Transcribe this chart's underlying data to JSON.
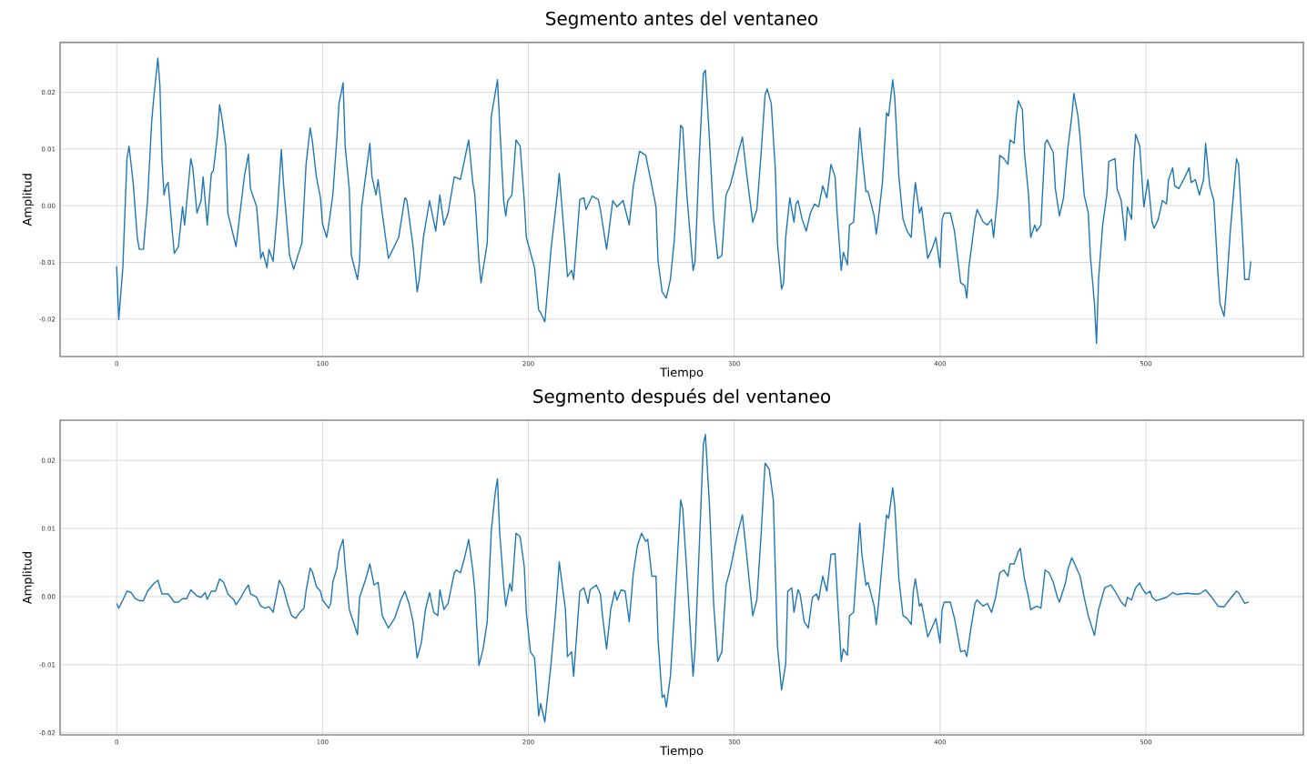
{
  "chart_data": [
    {
      "type": "line",
      "title": "Segmento antes del ventaneo",
      "xlabel": "Tiempo",
      "ylabel": "Amplitud",
      "color": "#1f77b4",
      "grid": true,
      "xlim": [
        -27.5,
        576.5
      ],
      "ylim": [
        -0.0266,
        0.0288
      ],
      "xticks": [
        0,
        100,
        200,
        300,
        400,
        500
      ],
      "yticks": [
        -0.02,
        -0.01,
        {
          "value": 0,
          "label": "0.00"
        },
        0.01,
        0.02
      ],
      "x": [
        0,
        1,
        3,
        5,
        6,
        8,
        10,
        11,
        13,
        15,
        17,
        18,
        20,
        21,
        22,
        23,
        24,
        25,
        27,
        28,
        30,
        32,
        33,
        36,
        37,
        39,
        41,
        42,
        44,
        46,
        47,
        49,
        50,
        51,
        53,
        54,
        58,
        62,
        64,
        65,
        68,
        70,
        71,
        73,
        74,
        76,
        78,
        80,
        81,
        84,
        86,
        89,
        90,
        92,
        94,
        95,
        97,
        99,
        100,
        102,
        103,
        105,
        107,
        108,
        110,
        111,
        113,
        114,
        117,
        118,
        119,
        123,
        124,
        126,
        127,
        129,
        132,
        137,
        140,
        141,
        144,
        146,
        147,
        149,
        152,
        155,
        157,
        159,
        161,
        164,
        167,
        171,
        173,
        174,
        176,
        177,
        180,
        182,
        185,
        186,
        188,
        189,
        190,
        192,
        194,
        196,
        198,
        199,
        203,
        205,
        206,
        208,
        211,
        214,
        215,
        218,
        219,
        221,
        222,
        225,
        227,
        228,
        231,
        234,
        235,
        238,
        241,
        243,
        246,
        249,
        251,
        254,
        257,
        260,
        262,
        263,
        265,
        267,
        269,
        271,
        274,
        275,
        277,
        280,
        281,
        283,
        285,
        286,
        288,
        290,
        292,
        294,
        296,
        298,
        301,
        302,
        304,
        306,
        309,
        311,
        313,
        315,
        316,
        318,
        320,
        321,
        323,
        324,
        325,
        327,
        329,
        330,
        331,
        333,
        335,
        337,
        339,
        341,
        343,
        345,
        347,
        349,
        350,
        352,
        353,
        355,
        356,
        358,
        361,
        362,
        364,
        365,
        368,
        369,
        370,
        372,
        374,
        375,
        377,
        378,
        380,
        382,
        384,
        386,
        387,
        388,
        390,
        391,
        394,
        396,
        398,
        400,
        401,
        402,
        405,
        407,
        410,
        412,
        413,
        414,
        417,
        418,
        421,
        423,
        425,
        426,
        428,
        429,
        431,
        433,
        434,
        436,
        437,
        438,
        440,
        441,
        443,
        444,
        446,
        447,
        449,
        451,
        452,
        455,
        456,
        458,
        460,
        462,
        464,
        465,
        467,
        468,
        470,
        472,
        473,
        475,
        476,
        477,
        479,
        481,
        482,
        485,
        486,
        488,
        490,
        491,
        493,
        494,
        495,
        497,
        499,
        501,
        503,
        504,
        506,
        508,
        510,
        511,
        513,
        514,
        516,
        519,
        521,
        522,
        524,
        526,
        528,
        529,
        531,
        533,
        535,
        536,
        538,
        539,
        541,
        542,
        544,
        545,
        547,
        548,
        550,
        551
      ],
      "values": [
        -0.0107,
        -0.0201,
        -0.0109,
        0.0083,
        0.0105,
        0.0041,
        -0.0056,
        -0.0077,
        -0.0077,
        0.0009,
        0.0148,
        0.019,
        0.026,
        0.0212,
        0.0083,
        0.0019,
        0.0035,
        0.0041,
        -0.0045,
        -0.0084,
        -0.0072,
        -0.0002,
        -0.0034,
        0.0083,
        0.0067,
        -0.0013,
        0.0009,
        0.0051,
        -0.0034,
        0.0057,
        0.0062,
        0.0126,
        0.0178,
        0.0158,
        0.0105,
        -0.0013,
        -0.0072,
        0.0051,
        0.0091,
        0.003,
        -0.0002,
        -0.0093,
        -0.0082,
        -0.0109,
        -0.0077,
        -0.0098,
        -0.0013,
        0.0099,
        0.0041,
        -0.0088,
        -0.0112,
        -0.0077,
        -0.0066,
        0.0073,
        0.0137,
        0.0116,
        0.0051,
        0.0014,
        -0.0032,
        -0.0056,
        -0.0034,
        0.0019,
        0.0121,
        0.018,
        0.0217,
        0.0105,
        0.003,
        -0.0088,
        -0.013,
        -0.0098,
        -0.0002,
        0.011,
        0.0051,
        0.0019,
        0.0046,
        -0.0013,
        -0.0093,
        -0.0056,
        0.0014,
        0.0009,
        -0.0072,
        -0.0152,
        -0.013,
        -0.0056,
        0.0009,
        -0.0045,
        0.0019,
        -0.0034,
        -0.0013,
        0.0051,
        0.0046,
        0.0116,
        0.0041,
        0.0019,
        -0.0098,
        -0.0136,
        -0.0066,
        0.0158,
        0.0222,
        0.0148,
        0.0009,
        -0.0018,
        0.0009,
        0.0019,
        0.0116,
        0.0105,
        0.0009,
        -0.0056,
        -0.0109,
        -0.0184,
        -0.0189,
        -0.0205,
        -0.0077,
        0.0019,
        0.0057,
        -0.0077,
        -0.0125,
        -0.0114,
        -0.013,
        0.0011,
        0.0014,
        -0.0007,
        0.0017,
        0.0011,
        -0.0007,
        -0.0077,
        0.0009,
        -0.0002,
        0.0009,
        -0.0034,
        0.0035,
        0.0096,
        0.0089,
        0.0035,
        -0.0002,
        -0.0098,
        -0.0152,
        -0.0163,
        -0.013,
        -0.0056,
        0.0142,
        0.0137,
        0.0019,
        -0.0114,
        -0.0098,
        0.0083,
        0.0233,
        0.0239,
        0.0116,
        -0.0024,
        -0.0093,
        -0.0088,
        0.0019,
        0.0035,
        0.0078,
        0.0094,
        0.0121,
        0.0057,
        -0.0029,
        -0.0007,
        0.0089,
        0.0196,
        0.0206,
        0.018,
        0.0062,
        -0.0066,
        -0.0147,
        -0.0136,
        -0.0056,
        0.0014,
        -0.0029,
        0.0003,
        0.0009,
        -0.0024,
        -0.0045,
        -0.0013,
        0.0003,
        -0.0002,
        0.0035,
        0.0014,
        0.0073,
        0.0051,
        -0.0013,
        -0.0114,
        -0.0082,
        -0.0104,
        -0.0034,
        -0.0029,
        0.0137,
        0.0094,
        0.0025,
        0.0025,
        -0.0018,
        -0.005,
        -0.0024,
        0.0041,
        0.0164,
        0.0158,
        0.0222,
        0.019,
        0.0051,
        -0.0024,
        -0.0045,
        -0.0056,
        0.0003,
        0.0041,
        -0.0013,
        -0.0002,
        -0.0093,
        -0.0077,
        -0.0056,
        -0.0109,
        -0.0024,
        -0.0013,
        -0.0013,
        -0.0045,
        -0.0136,
        -0.0141,
        -0.0163,
        -0.0109,
        -0.0024,
        -0.0007,
        -0.0029,
        -0.0034,
        -0.0024,
        -0.0056,
        0.0019,
        0.0089,
        0.0083,
        0.0073,
        0.0116,
        0.011,
        0.0158,
        0.0185,
        0.0169,
        0.0094,
        0.0019,
        -0.0056,
        -0.0034,
        -0.0045,
        -0.0034,
        0.011,
        0.0116,
        0.0094,
        0.003,
        -0.0018,
        0.0014,
        0.0099,
        0.0158,
        0.0198,
        0.0158,
        0.0121,
        0.0019,
        -0.0013,
        -0.0088,
        -0.0173,
        -0.0243,
        -0.013,
        -0.0034,
        0.0019,
        0.0078,
        0.0083,
        0.003,
        0.0009,
        -0.0061,
        -0.0002,
        -0.0024,
        0.0073,
        0.0126,
        0.0105,
        -0.0002,
        0.0046,
        -0.0029,
        -0.004,
        -0.0024,
        0.0009,
        0.0003,
        0.0046,
        0.0067,
        0.0035,
        0.003,
        0.0051,
        0.0067,
        0.0041,
        0.0046,
        0.0019,
        0.0046,
        0.011,
        0.0035,
        0.0009,
        -0.012,
        -0.0173,
        -0.0195,
        -0.0152,
        -0.0045,
        -0.0002,
        0.0083,
        0.0073,
        -0.0056,
        -0.013,
        -0.013,
        -0.0098
      ]
    },
    {
      "type": "line",
      "title": "Segmento después del ventaneo",
      "xlabel": "Tiempo",
      "ylabel": "Amplitud",
      "color": "#1f77b4",
      "grid": true,
      "xlim": [
        -27.5,
        576.5
      ],
      "ylim": [
        -0.0203,
        0.0259
      ],
      "xticks": [
        0,
        100,
        200,
        300,
        400,
        500
      ],
      "yticks": [
        -0.02,
        -0.01,
        {
          "value": 0,
          "label": "0.00"
        },
        0.01,
        0.02
      ],
      "x": [
        0,
        1,
        3,
        5,
        7,
        9,
        11,
        13,
        15,
        18,
        20,
        22,
        25,
        28,
        30,
        32,
        34,
        36,
        39,
        41,
        43,
        44,
        46,
        48,
        50,
        52,
        54,
        57,
        58,
        60,
        62,
        64,
        65,
        68,
        70,
        72,
        74,
        76,
        78,
        79,
        81,
        83,
        85,
        87,
        89,
        91,
        92,
        94,
        95,
        97,
        99,
        100,
        103,
        104,
        105,
        107,
        108,
        110,
        111,
        113,
        115,
        117,
        118,
        121,
        123,
        125,
        127,
        129,
        132,
        135,
        138,
        140,
        142,
        144,
        146,
        148,
        150,
        152,
        154,
        156,
        157,
        159,
        161,
        164,
        165,
        167,
        169,
        171,
        173,
        174,
        176,
        178,
        180,
        182,
        184,
        185,
        186,
        188,
        189,
        191,
        192,
        194,
        196,
        198,
        199,
        201,
        203,
        205,
        206,
        208,
        211,
        213,
        214,
        215,
        218,
        219,
        221,
        222,
        225,
        227,
        229,
        230,
        233,
        235,
        236,
        238,
        240,
        242,
        243,
        245,
        247,
        249,
        251,
        253,
        255,
        257,
        258,
        260,
        262,
        263,
        265,
        266,
        267,
        269,
        271,
        274,
        275,
        277,
        280,
        281,
        283,
        285,
        286,
        288,
        290,
        292,
        294,
        296,
        298,
        301,
        302,
        304,
        306,
        309,
        311,
        313,
        315,
        317,
        319,
        320,
        321,
        323,
        325,
        326,
        328,
        329,
        331,
        332,
        334,
        336,
        338,
        340,
        341,
        343,
        345,
        347,
        349,
        350,
        352,
        353,
        355,
        356,
        358,
        361,
        362,
        364,
        365,
        368,
        369,
        370,
        372,
        374,
        375,
        377,
        378,
        380,
        382,
        384,
        386,
        387,
        388,
        390,
        391,
        394,
        396,
        398,
        400,
        401,
        402,
        405,
        407,
        410,
        412,
        413,
        415,
        417,
        418,
        421,
        423,
        425,
        427,
        429,
        431,
        433,
        434,
        436,
        438,
        439,
        441,
        443,
        444,
        447,
        449,
        451,
        453,
        455,
        457,
        458,
        461,
        462,
        464,
        466,
        468,
        470,
        472,
        475,
        477,
        480,
        483,
        485,
        488,
        490,
        491,
        493,
        495,
        497,
        498,
        500,
        502,
        503,
        505,
        508,
        510,
        513,
        515,
        517,
        520,
        523,
        526,
        529,
        532,
        535,
        538,
        541,
        544,
        545,
        548,
        550
      ],
      "values": [
        -0.001,
        -0.0017,
        -0.0005,
        0.0008,
        0.0006,
        -0.0003,
        -0.0006,
        -0.0006,
        0.0008,
        0.0019,
        0.0024,
        0.0004,
        0.0004,
        -0.0008,
        -0.0008,
        -0.0003,
        -0.0003,
        0.001,
        0.0001,
        -0.0001,
        0.0006,
        -0.0004,
        0.0008,
        0.0008,
        0.0026,
        0.0021,
        0.0004,
        -0.0005,
        -0.0012,
        -0.0003,
        0.0008,
        0.0017,
        0.0004,
        -0.0001,
        -0.0014,
        -0.0017,
        -0.0015,
        -0.0023,
        0.0008,
        0.0024,
        0.0013,
        -0.001,
        -0.0028,
        -0.0032,
        -0.0023,
        -0.0017,
        0.0008,
        0.0042,
        0.0037,
        0.0015,
        0.0008,
        -0.0005,
        -0.0017,
        -0.001,
        0.0021,
        0.0042,
        0.0066,
        0.0084,
        0.0044,
        -0.0019,
        -0.0037,
        -0.0056,
        -0.0001,
        0.0026,
        0.0048,
        0.0017,
        0.0021,
        -0.0028,
        -0.0046,
        -0.0032,
        -0.0005,
        0.0008,
        -0.001,
        -0.0037,
        -0.009,
        -0.0068,
        -0.0019,
        0.0006,
        -0.0023,
        -0.0028,
        0.001,
        -0.0019,
        -0.001,
        0.0035,
        0.0039,
        0.0035,
        0.0057,
        0.0084,
        0.0039,
        0.0008,
        -0.0101,
        -0.0077,
        -0.0037,
        0.0097,
        0.0155,
        0.0173,
        0.0097,
        0.0017,
        -0.0014,
        0.0019,
        0.0008,
        0.0093,
        0.0088,
        0.0044,
        -0.0023,
        -0.0081,
        -0.009,
        -0.0175,
        -0.0157,
        -0.0184,
        -0.0099,
        -0.0032,
        0.0008,
        0.0051,
        -0.0019,
        -0.0088,
        -0.0081,
        -0.0117,
        0.0008,
        0.0013,
        -0.001,
        0.001,
        0.0017,
        0.0004,
        -0.0028,
        -0.0077,
        -0.0019,
        0.0008,
        -0.0005,
        0.001,
        0.0008,
        -0.0037,
        0.0035,
        0.0075,
        0.0093,
        0.0081,
        0.0084,
        0.003,
        0.003,
        -0.0063,
        -0.0148,
        -0.0144,
        -0.0162,
        -0.0117,
        -0.0019,
        0.0142,
        0.0129,
        0.0035,
        -0.0117,
        -0.0077,
        0.0071,
        0.0223,
        0.0238,
        0.0133,
        -0.001,
        -0.0095,
        -0.0081,
        0.0017,
        0.0039,
        0.0084,
        0.0097,
        0.012,
        0.0062,
        -0.0028,
        -0.0005,
        0.0088,
        0.0196,
        0.0187,
        0.0142,
        0.0035,
        -0.0072,
        -0.0137,
        -0.0099,
        0.0008,
        0.0013,
        -0.0023,
        0.001,
        0.0004,
        -0.0037,
        -0.0046,
        -0.0001,
        0.0004,
        -0.0005,
        0.003,
        0.0008,
        0.0062,
        0.0063,
        0.0008,
        -0.0095,
        -0.0077,
        -0.0086,
        -0.0028,
        -0.0023,
        0.0108,
        0.0062,
        0.0017,
        0.0021,
        -0.0014,
        -0.0041,
        -0.0014,
        0.0053,
        0.012,
        0.0115,
        0.016,
        0.0133,
        0.0026,
        -0.0028,
        -0.0032,
        -0.0041,
        0.0008,
        0.0026,
        -0.0014,
        -0.001,
        -0.0059,
        -0.0046,
        -0.0032,
        -0.0068,
        -0.0019,
        -0.0008,
        -0.0008,
        -0.0032,
        -0.0081,
        -0.0079,
        -0.0088,
        -0.0046,
        -0.001,
        -0.0005,
        -0.0014,
        -0.001,
        -0.0023,
        -0.0001,
        0.0035,
        0.0039,
        0.003,
        0.0048,
        0.0048,
        0.0066,
        0.0071,
        0.0026,
        -0.0001,
        -0.0019,
        -0.0014,
        -0.0017,
        0.0039,
        0.0035,
        0.0021,
        -0.0001,
        -0.0008,
        0.0021,
        0.0039,
        0.0057,
        0.0044,
        0.003,
        -0.0001,
        -0.0028,
        -0.0057,
        -0.0019,
        0.0013,
        0.0017,
        0.0008,
        -0.0008,
        -0.0014,
        -0.0001,
        -0.0005,
        0.0013,
        0.002,
        0.0013,
        0.0004,
        0.0008,
        -0.0001,
        -0.0006,
        -0.0003,
        -0.0001,
        0.0006,
        0.0003,
        0.0004,
        0.0005,
        0.0004,
        0.0004,
        0.001,
        -0.0001,
        -0.0014,
        -0.0015,
        -0.0003,
        0.0008,
        0.0006,
        -0.001,
        -0.0008
      ]
    }
  ]
}
